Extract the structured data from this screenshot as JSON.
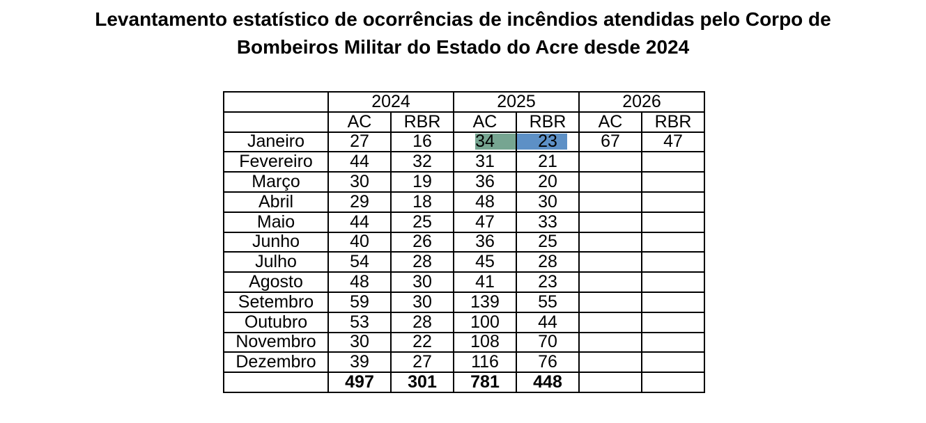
{
  "title": {
    "full": "Levantamento estatístico de ocorrências de incêndios atendidas pelo Corpo de Bombeiros Militar do Estado do Acre desde 2024",
    "line1": "Levantamento estatístico de ocorrências de incêndios atendidas pelo Corpo de",
    "line2": "Bombeiros Militar do Estado do Acre desde 2024"
  },
  "table": {
    "years": [
      "2024",
      "2025",
      "2026"
    ],
    "subheaders": [
      "AC",
      "RBR",
      "AC",
      "RBR",
      "AC",
      "RBR"
    ]
  },
  "chart_data": {
    "type": "table",
    "title": "Levantamento estatístico de ocorrências de incêndios atendidas pelo Corpo de Bombeiros Militar do Estado do Acre desde 2024",
    "categories": [
      "Janeiro",
      "Fevereiro",
      "Março",
      "Abril",
      "Maio",
      "Junho",
      "Julho",
      "Agosto",
      "Setembro",
      "Outubro",
      "Novembro",
      "Dezembro"
    ],
    "series": [
      {
        "name": "2024 AC",
        "year": "2024",
        "column": "AC",
        "values": [
          27,
          44,
          30,
          29,
          44,
          40,
          54,
          48,
          59,
          53,
          30,
          39
        ],
        "total": 497
      },
      {
        "name": "2024 RBR",
        "year": "2024",
        "column": "RBR",
        "values": [
          16,
          32,
          19,
          18,
          25,
          26,
          28,
          30,
          30,
          28,
          22,
          27
        ],
        "total": 301
      },
      {
        "name": "2025 AC",
        "year": "2025",
        "column": "AC",
        "values": [
          34,
          31,
          36,
          48,
          47,
          36,
          45,
          41,
          139,
          100,
          108,
          116
        ],
        "total": 781
      },
      {
        "name": "2025 RBR",
        "year": "2025",
        "column": "RBR",
        "values": [
          23,
          21,
          20,
          30,
          33,
          25,
          28,
          23,
          55,
          44,
          70,
          76
        ],
        "total": 448
      },
      {
        "name": "2026 AC",
        "year": "2026",
        "column": "AC",
        "values": [
          67,
          null,
          null,
          null,
          null,
          null,
          null,
          null,
          null,
          null,
          null,
          null
        ],
        "total": null
      },
      {
        "name": "2026 RBR",
        "year": "2026",
        "column": "RBR",
        "values": [
          47,
          null,
          null,
          null,
          null,
          null,
          null,
          null,
          null,
          null,
          null,
          null
        ],
        "total": null
      }
    ]
  },
  "selection": {
    "row_index": 0,
    "col_indexes": [
      2,
      3
    ],
    "cells": [
      "Janeiro 2025 AC (34)",
      "Janeiro 2025 RBR (23)"
    ]
  },
  "colors": {
    "ac_fill": "#c6e0b4",
    "rbr_fill": "#9dc3e6",
    "selection_over_green": "#76a591",
    "selection_over_blue": "#5d90c6",
    "border": "#000000",
    "background": "#ffffff",
    "text": "#000000"
  }
}
